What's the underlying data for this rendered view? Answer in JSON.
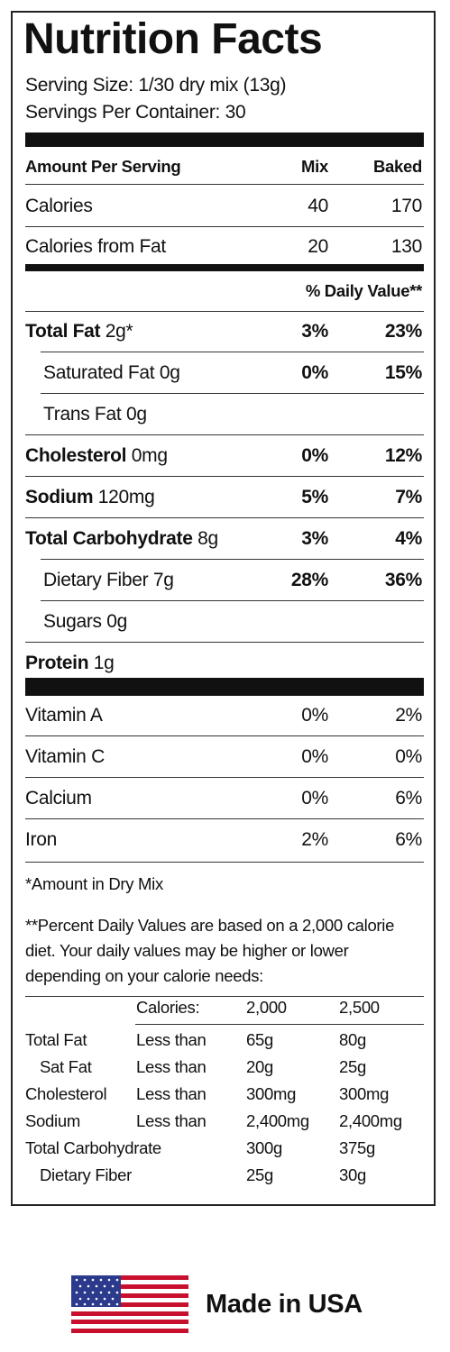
{
  "title": "Nutrition Facts",
  "serving_size": "Serving Size: 1/30 dry mix (13g)",
  "servings_per_container": "Servings Per Container: 30",
  "header": {
    "label": "Amount Per Serving",
    "mix": "Mix",
    "baked": "Baked"
  },
  "calories": [
    {
      "label": "Calories",
      "mix": "40",
      "baked": "170"
    },
    {
      "label": "Calories from Fat",
      "mix": "20",
      "baked": "130"
    }
  ],
  "daily_value_header": "% Daily Value**",
  "nutrients": [
    {
      "name": "Total Fat",
      "amount": "2g*",
      "mix": "3%",
      "baked": "23%"
    },
    {
      "name": "Saturated Fat",
      "amount": "0g",
      "mix": "0%",
      "baked": "15%"
    },
    {
      "name": "Trans Fat",
      "amount": "0g"
    },
    {
      "name": "Cholesterol",
      "amount": "0mg",
      "mix": "0%",
      "baked": "12%"
    },
    {
      "name": "Sodium",
      "amount": "120mg",
      "mix": "5%",
      "baked": "7%"
    },
    {
      "name": "Total Carbohydrate",
      "amount": "8g",
      "mix": "3%",
      "baked": "4%"
    },
    {
      "name": "Dietary Fiber",
      "amount": "7g",
      "mix": "28%",
      "baked": "36%"
    },
    {
      "name": "Sugars",
      "amount": "0g"
    },
    {
      "name": "Protein",
      "amount": "1g"
    }
  ],
  "vitamins": [
    {
      "name": "Vitamin A",
      "mix": "0%",
      "baked": "2%"
    },
    {
      "name": "Vitamin C",
      "mix": "0%",
      "baked": "0%"
    },
    {
      "name": "Calcium",
      "mix": "0%",
      "baked": "6%"
    },
    {
      "name": "Iron",
      "mix": "2%",
      "baked": "6%"
    }
  ],
  "footnotes": [
    "*Amount in Dry Mix",
    "**Percent Daily Values are based on a 2,000 calorie diet. Your daily values may be higher or lower depending on your calorie needs:"
  ],
  "daily_table": {
    "header": [
      "Calories:",
      "2,000",
      "2,500"
    ],
    "rows": [
      [
        "Total Fat",
        "Less than",
        "65g",
        "80g"
      ],
      [
        "Sat Fat",
        "Less than",
        "20g",
        "25g"
      ],
      [
        "Cholesterol",
        "Less than",
        "300mg",
        "300mg"
      ],
      [
        "Sodium",
        "Less than",
        "2,400mg",
        "2,400mg"
      ],
      [
        "Total Carbohydrate",
        "",
        "300g",
        "375g"
      ],
      [
        "Dietary Fiber",
        "",
        "25g",
        "30g"
      ]
    ]
  },
  "origin": "Made in USA"
}
